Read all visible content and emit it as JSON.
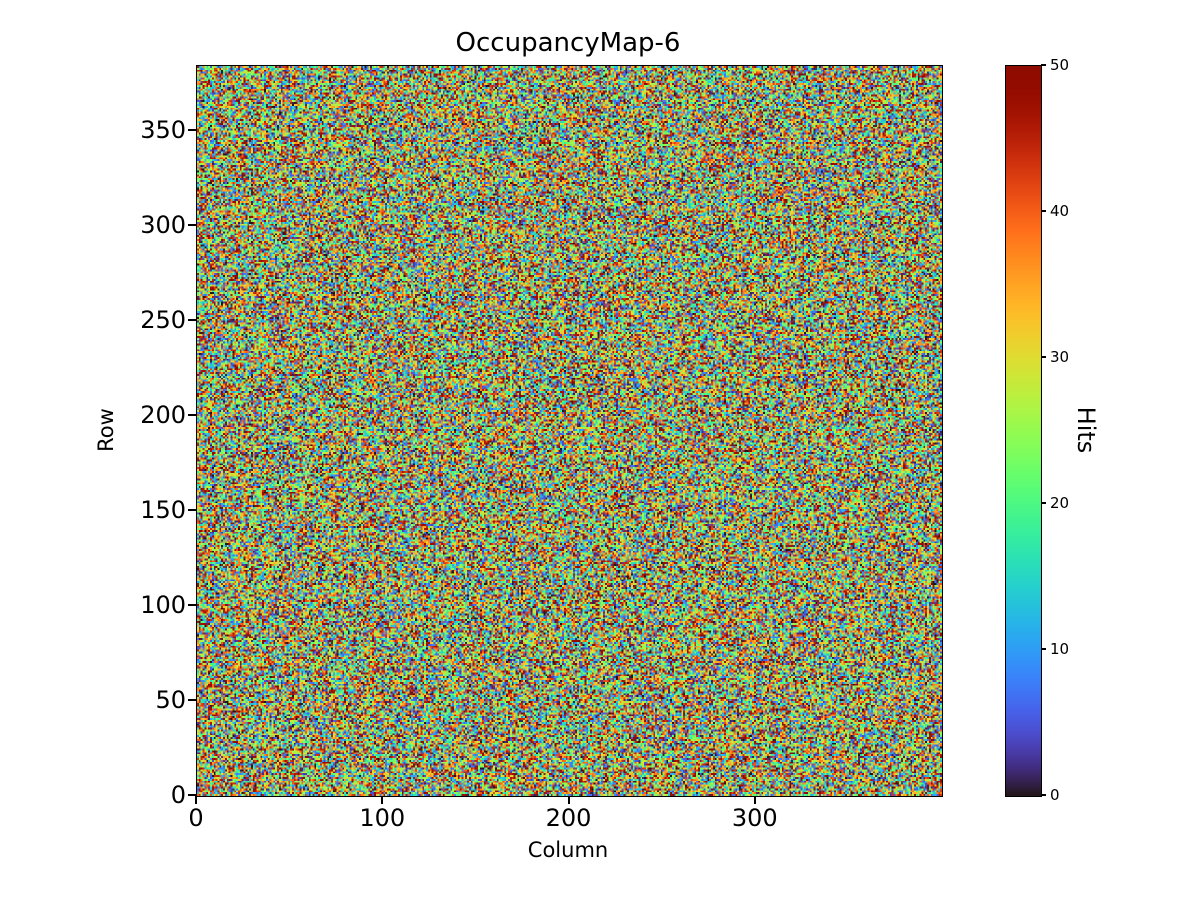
{
  "figure": {
    "background_color": "#ffffff",
    "text_color": "#000000"
  },
  "chart_data": {
    "type": "heatmap",
    "title": "OccupancyMap-6",
    "xlabel": "Column",
    "ylabel": "Row",
    "colorbar_label": "Hits",
    "cols": 400,
    "rows": 384,
    "x_range": [
      0,
      400
    ],
    "y_range": [
      0,
      384
    ],
    "value_range": [
      0,
      50
    ],
    "xticks": [
      0,
      100,
      200,
      300
    ],
    "yticks": [
      0,
      50,
      100,
      150,
      200,
      250,
      300,
      350
    ],
    "colorbar_ticks": [
      0,
      10,
      20,
      30,
      40,
      50
    ],
    "colormap": "turbo",
    "colormap_min_color": "#30123b",
    "colormap_max_color": "#7a0403",
    "values_description": "per-pixel uniform random hit counts between 0 and 50 (noise occupancy map)",
    "seed": 6,
    "grid": false,
    "legend": "none (vertical colorbar on right)"
  }
}
